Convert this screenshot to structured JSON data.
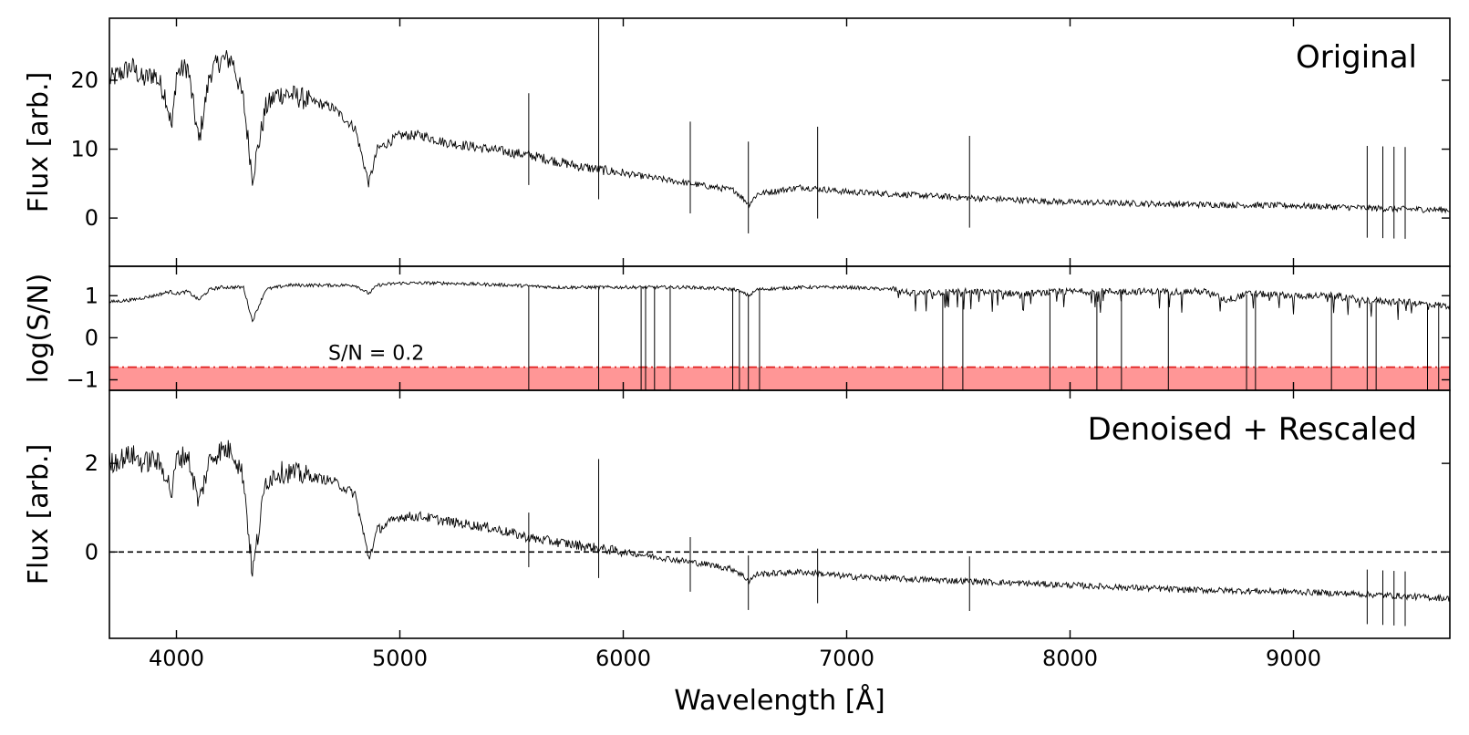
{
  "chart_data": [
    {
      "type": "line",
      "panel": "top",
      "title": "Original",
      "xlabel": "",
      "ylabel": "Flux [arb.]",
      "xlim": [
        3700,
        9700
      ],
      "ylim": [
        -7,
        29
      ],
      "xticks": [
        4000,
        5000,
        6000,
        7000,
        8000,
        9000
      ],
      "yticks": [
        0,
        10,
        20
      ],
      "ytick_labels": [
        "0",
        "10",
        "20"
      ],
      "series": [
        {
          "name": "Original spectrum",
          "color": "#000000",
          "x": [
            3700,
            3750,
            3800,
            3850,
            3900,
            3950,
            3980,
            4000,
            4050,
            4100,
            4150,
            4200,
            4250,
            4300,
            4340,
            4400,
            4450,
            4500,
            4600,
            4700,
            4800,
            4861,
            4900,
            5000,
            5100,
            5200,
            5400,
            5600,
            5800,
            6000,
            6200,
            6400,
            6500,
            6563,
            6600,
            6800,
            7000,
            7200,
            7500,
            8000,
            8500,
            9000,
            9300,
            9500,
            9700
          ],
          "y": [
            20,
            21,
            22,
            20,
            21,
            18,
            13,
            21,
            22,
            11,
            21,
            23,
            23,
            17,
            6,
            16,
            18,
            18,
            17,
            16,
            13,
            5,
            10,
            12,
            12,
            11,
            10,
            9,
            7.5,
            6.5,
            5.5,
            4.5,
            4,
            2,
            3.5,
            4.5,
            3.8,
            3.5,
            3,
            2.3,
            2,
            1.8,
            1.5,
            1.3,
            1.2
          ]
        }
      ]
    },
    {
      "type": "line",
      "panel": "middle",
      "xlabel": "",
      "ylabel": "log(S/N)",
      "xlim": [
        3700,
        9700
      ],
      "ylim": [
        -1.25,
        1.7
      ],
      "xticks": [
        4000,
        5000,
        6000,
        7000,
        8000,
        9000
      ],
      "yticks": [
        -1,
        0,
        1
      ],
      "ytick_labels": [
        "−1",
        "0",
        "1"
      ],
      "threshold": {
        "label": "S/N = 0.2",
        "log_value": -0.7,
        "shade_color": "#ff9696",
        "line_color": "#e02020"
      },
      "series": [
        {
          "name": "log(S/N)",
          "color": "#000000",
          "x": [
            3700,
            3800,
            3900,
            3970,
            4000,
            4050,
            4100,
            4150,
            4200,
            4300,
            4340,
            4400,
            4500,
            4800,
            4861,
            4900,
            5000,
            5200,
            5500,
            5700,
            6000,
            6300,
            6500,
            6563,
            6600,
            6800,
            7000,
            7200,
            7300,
            7500,
            7800,
            8000,
            8300,
            8600,
            8700,
            8800,
            9000,
            9200,
            9300,
            9500,
            9700
          ],
          "y": [
            0.85,
            0.9,
            1.0,
            1.1,
            1.05,
            1.1,
            0.9,
            1.15,
            1.2,
            1.2,
            0.4,
            1.15,
            1.25,
            1.25,
            1.05,
            1.25,
            1.3,
            1.3,
            1.25,
            1.2,
            1.2,
            1.2,
            1.15,
            1.0,
            1.15,
            1.2,
            1.2,
            1.15,
            1.05,
            1.1,
            1.05,
            1.1,
            1.1,
            1.1,
            0.9,
            1.05,
            1.0,
            1.0,
            0.9,
            0.85,
            0.75
          ]
        }
      ]
    },
    {
      "type": "line",
      "panel": "bottom",
      "title": "Denoised + Rescaled",
      "xlabel": "Wavelength [Å]",
      "ylabel": "Flux [arb.]",
      "xlim": [
        3700,
        9700
      ],
      "ylim": [
        -1.95,
        3.65
      ],
      "xticks": [
        4000,
        5000,
        6000,
        7000,
        8000,
        9000
      ],
      "xtick_labels": [
        "4000",
        "5000",
        "6000",
        "7000",
        "8000",
        "9000"
      ],
      "yticks": [
        0,
        2
      ],
      "ytick_labels": [
        "0",
        "2"
      ],
      "zero_line": 0,
      "series": [
        {
          "name": "Denoised spectrum",
          "color": "#000000",
          "x": [
            3700,
            3750,
            3800,
            3850,
            3900,
            3950,
            3980,
            4000,
            4050,
            4100,
            4150,
            4200,
            4250,
            4300,
            4340,
            4400,
            4450,
            4500,
            4600,
            4700,
            4800,
            4861,
            4900,
            5000,
            5100,
            5200,
            5400,
            5600,
            5800,
            6000,
            6200,
            6400,
            6500,
            6563,
            6600,
            6800,
            7000,
            7200,
            7500,
            8000,
            8500,
            9000,
            9300,
            9500,
            9700
          ],
          "y": [
            2.0,
            2.1,
            2.2,
            2.0,
            2.1,
            1.8,
            1.3,
            2.1,
            2.2,
            1.1,
            2.1,
            2.3,
            2.3,
            1.7,
            -0.5,
            1.6,
            1.8,
            1.8,
            1.7,
            1.6,
            1.3,
            -0.15,
            0.5,
            0.8,
            0.8,
            0.7,
            0.55,
            0.3,
            0.15,
            0.0,
            -0.15,
            -0.3,
            -0.4,
            -0.65,
            -0.5,
            -0.45,
            -0.55,
            -0.6,
            -0.65,
            -0.75,
            -0.85,
            -0.9,
            -0.95,
            -1.0,
            -1.05
          ]
        }
      ]
    }
  ]
}
